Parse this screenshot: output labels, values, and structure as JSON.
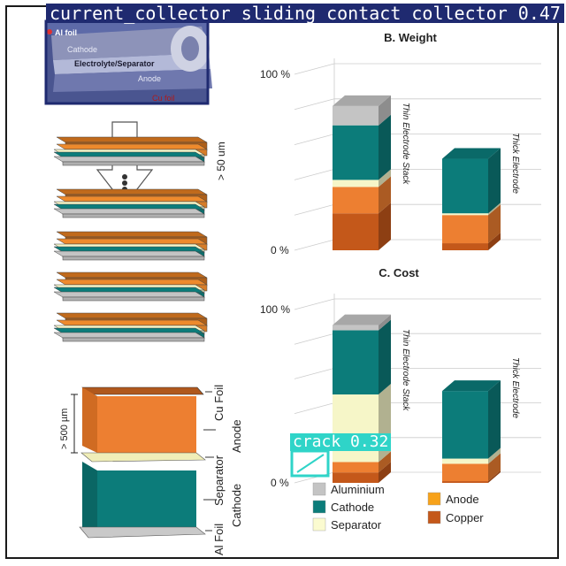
{
  "detections": [
    {
      "label": "current_collector_sliding_contact_collector 0.47",
      "color": "#1f2a70"
    },
    {
      "label": "crack 0.32",
      "color": "#2fd4c8"
    }
  ],
  "photo_labels": {
    "al_foil": "Al foil",
    "cathode": "Cathode",
    "electrolyte": "Electrolyte/Separator",
    "anode": "Anode",
    "cu_foil": "Cu foil"
  },
  "stack_diagram": {
    "thin_thickness": "> 50 um",
    "thick_thickness": "> 500 µm",
    "layer_labels": {
      "cu_foil": "Cu Foil",
      "anode": "Anode",
      "separator": "Separator",
      "cathode": "Cathode",
      "al_foil": "Al Foil"
    }
  },
  "chart_data": [
    {
      "type": "bar",
      "title": "B. Weight",
      "stacked": true,
      "categories": [
        "Thin Electrode Stack",
        "Thick Electrode"
      ],
      "ytick_labels": [
        "0 %",
        "100 %"
      ],
      "series": [
        {
          "name": "Copper",
          "values": [
            21,
            4
          ]
        },
        {
          "name": "Anode",
          "values": [
            15,
            16
          ]
        },
        {
          "name": "Separator",
          "values": [
            4,
            1
          ]
        },
        {
          "name": "Cathode",
          "values": [
            31,
            31
          ]
        },
        {
          "name": "Aluminium",
          "values": [
            11,
            0
          ]
        }
      ]
    },
    {
      "type": "bar",
      "title": "C. Cost",
      "stacked": true,
      "categories": [
        "Thin Electrode Stack",
        "Thick Electrode"
      ],
      "ytick_labels": [
        "0 %",
        "100 %"
      ],
      "series": [
        {
          "name": "Copper",
          "values": [
            6,
            1
          ]
        },
        {
          "name": "Anode",
          "values": [
            6,
            10
          ]
        },
        {
          "name": "Separator",
          "values": [
            39,
            3
          ]
        },
        {
          "name": "Cathode",
          "values": [
            37,
            39
          ]
        },
        {
          "name": "Aluminium",
          "values": [
            3,
            0
          ]
        }
      ]
    }
  ],
  "legend": [
    {
      "name": "Aluminium",
      "color": "#c4c4c4"
    },
    {
      "name": "Cathode",
      "color": "#0c7c7a"
    },
    {
      "name": "Separator",
      "color": "#fbfbd0"
    },
    {
      "name": "Anode",
      "color": "#f7a21a"
    },
    {
      "name": "Copper",
      "color": "#c4581a"
    }
  ],
  "colors": {
    "copper": "#c4581a",
    "anode": "#ed7f31",
    "separator": "#f6f6c8",
    "cathode": "#0c7c7a",
    "aluminium": "#c4c4c4",
    "copper_layer": "#c06a1c",
    "anode_layer": "#ee8a2c"
  }
}
